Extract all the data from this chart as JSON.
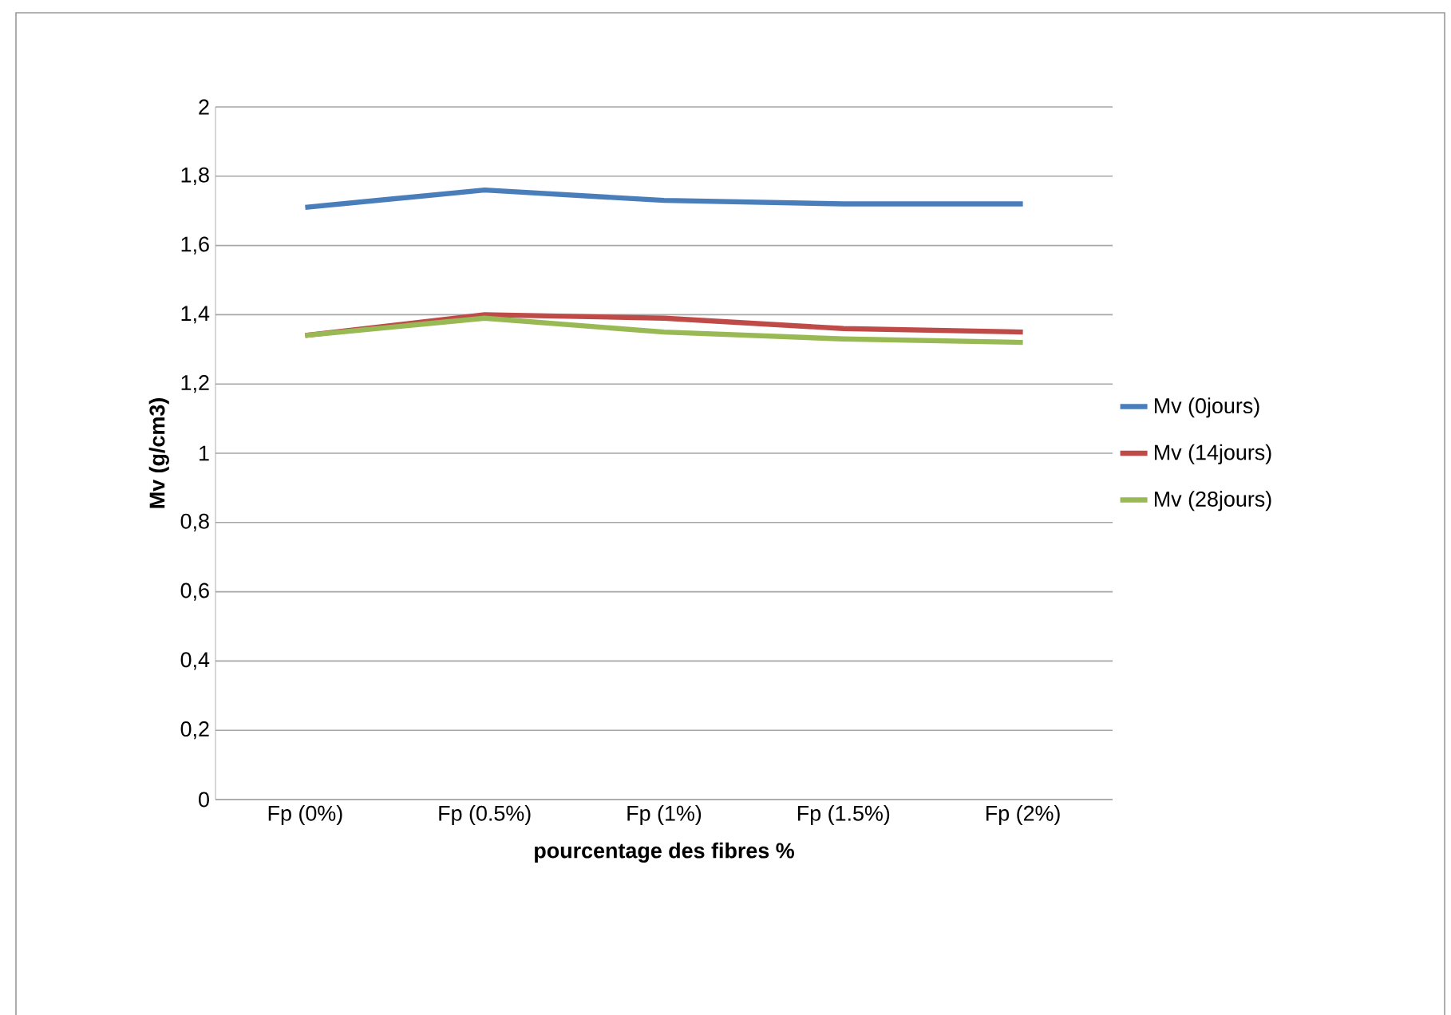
{
  "chart_data": {
    "type": "line",
    "xlabel": "pourcentage des fibres %",
    "ylabel": "Mv  (g/cm3)",
    "categories": [
      "Fp  (0%)",
      "Fp  (0.5%)",
      "Fp  (1%)",
      "Fp  (1.5%)",
      "Fp  (2%)"
    ],
    "series": [
      {
        "name": "Mv (0jours)",
        "color": "#4a7ebb",
        "values": [
          1.71,
          1.76,
          1.73,
          1.72,
          1.72
        ]
      },
      {
        "name": "Mv (14jours)",
        "color": "#be4b48",
        "values": [
          1.34,
          1.4,
          1.39,
          1.36,
          1.35
        ]
      },
      {
        "name": "Mv (28jours)",
        "color": "#98b954",
        "values": [
          1.34,
          1.39,
          1.35,
          1.33,
          1.32
        ]
      }
    ],
    "ylim": [
      0,
      2
    ],
    "yticks": [
      0,
      {
        "value": 0.2,
        "label": "0,2"
      },
      {
        "value": 0.4,
        "label": "0,4"
      },
      {
        "value": 0.6,
        "label": "0,6"
      },
      {
        "value": 0.8,
        "label": "0,8"
      },
      1,
      {
        "value": 1.2,
        "label": "1,2"
      },
      {
        "value": 1.4,
        "label": "1,4"
      },
      {
        "value": 1.6,
        "label": "1,6"
      },
      {
        "value": 1.8,
        "label": "1,8"
      },
      2
    ],
    "grid": "y",
    "legend": "right",
    "marker": "none",
    "line_style": "solid"
  }
}
